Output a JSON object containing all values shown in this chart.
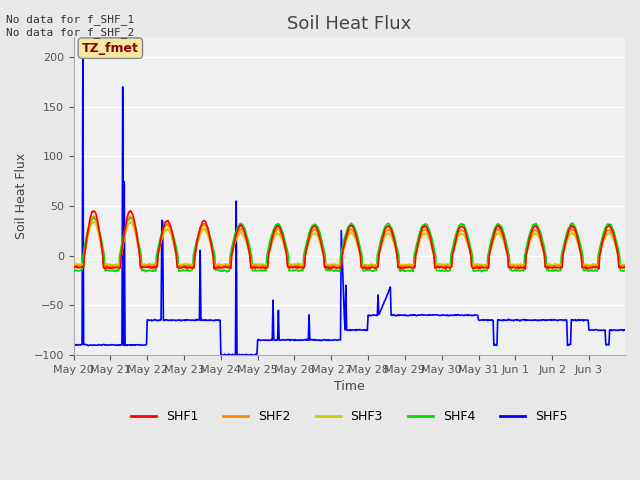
{
  "title": "Soil Heat Flux",
  "ylabel": "Soil Heat Flux",
  "xlabel": "Time",
  "annotation_text": "No data for f_SHF_1\nNo data for f_SHF_2",
  "legend_label_text": "TZ_fmet",
  "ylim": [
    -100,
    220
  ],
  "series_colors": {
    "SHF1": "#ff0000",
    "SHF2": "#ff8800",
    "SHF3": "#cccc00",
    "SHF4": "#00dd00",
    "SHF5": "#0000ff"
  },
  "bg_color": "#e8e8e8",
  "plot_bg_color": "#f0f0f0",
  "grid_color": "white",
  "title_fontsize": 13,
  "axis_fontsize": 9,
  "tick_fontsize": 8
}
